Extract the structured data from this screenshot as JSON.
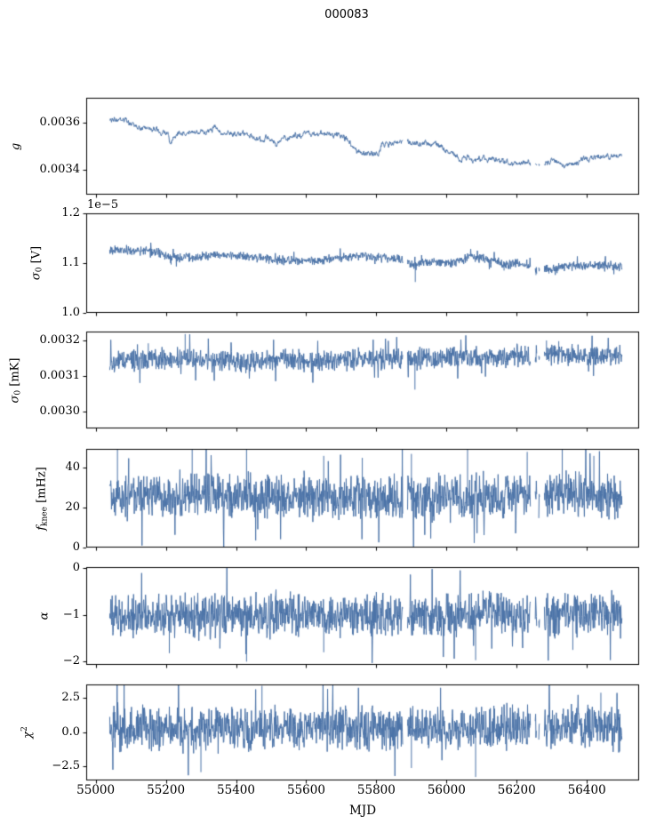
{
  "chart_data": {
    "type": "line",
    "title": "000083",
    "xlabel": "MJD",
    "line_color": "#4b73a8",
    "frame_color": "#000000",
    "text_color": "#000000",
    "xlim": [
      54973,
      56549
    ],
    "xticks": {
      "values": [
        55000,
        55200,
        55400,
        55600,
        55800,
        56000,
        56200,
        56400
      ],
      "labels": [
        "55000",
        "55200",
        "55400",
        "55600",
        "55800",
        "56000",
        "56200",
        "56400"
      ]
    },
    "x_data_range": [
      55040,
      56500
    ],
    "x_step_days": 1,
    "gaps": [
      [
        55876,
        55888
      ],
      [
        56240,
        56252
      ],
      [
        56258,
        56262
      ],
      [
        56266,
        56278
      ]
    ],
    "subplots": [
      {
        "ylabel_text": "g",
        "ylabel": [
          [
            "g",
            "i"
          ]
        ],
        "ylim": [
          0.003295,
          0.003705
        ],
        "yticks": {
          "values": [
            0.0034,
            0.0036
          ],
          "labels": [
            "0.0034",
            "0.0036"
          ]
        },
        "offset_text": null,
        "noise": {
          "up": 1e-05,
          "down": 1e-05,
          "smooth": true,
          "spike_prob": 0,
          "seed": 3
        },
        "trend": [
          [
            55040,
            0.003612
          ],
          [
            55070,
            0.003608
          ],
          [
            55100,
            0.003597
          ],
          [
            55130,
            0.003578
          ],
          [
            55160,
            0.00357
          ],
          [
            55190,
            0.003558
          ],
          [
            55206,
            0.003556
          ],
          [
            55212,
            0.003505
          ],
          [
            55222,
            0.003548
          ],
          [
            55250,
            0.003556
          ],
          [
            55285,
            0.00356
          ],
          [
            55315,
            0.003556
          ],
          [
            55340,
            0.00358
          ],
          [
            55355,
            0.003558
          ],
          [
            55385,
            0.003552
          ],
          [
            55415,
            0.003549
          ],
          [
            55445,
            0.003548
          ],
          [
            55475,
            0.003522
          ],
          [
            55495,
            0.003541
          ],
          [
            55515,
            0.003498
          ],
          [
            55530,
            0.003528
          ],
          [
            55555,
            0.003544
          ],
          [
            55590,
            0.00355
          ],
          [
            55630,
            0.003552
          ],
          [
            55665,
            0.003549
          ],
          [
            55695,
            0.003546
          ],
          [
            55720,
            0.003524
          ],
          [
            55745,
            0.003473
          ],
          [
            55775,
            0.003472
          ],
          [
            55805,
            0.003468
          ],
          [
            55818,
            0.003508
          ],
          [
            55850,
            0.003511
          ],
          [
            55890,
            0.003512
          ],
          [
            55930,
            0.003512
          ],
          [
            55960,
            0.003508
          ],
          [
            55985,
            0.003498
          ],
          [
            56010,
            0.003473
          ],
          [
            56035,
            0.003444
          ],
          [
            56065,
            0.003449
          ],
          [
            56095,
            0.003443
          ],
          [
            56125,
            0.003446
          ],
          [
            56155,
            0.003441
          ],
          [
            56185,
            0.003426
          ],
          [
            56215,
            0.003431
          ],
          [
            56245,
            0.003428
          ],
          [
            56275,
            0.003428
          ],
          [
            56305,
            0.003438
          ],
          [
            56330,
            0.003427
          ],
          [
            56355,
            0.003419
          ],
          [
            56380,
            0.003439
          ],
          [
            56410,
            0.003447
          ],
          [
            56440,
            0.003452
          ],
          [
            56470,
            0.003458
          ],
          [
            56500,
            0.003461
          ]
        ],
        "spikes": []
      },
      {
        "ylabel_text": "σ0 [V]",
        "ylabel": [
          [
            "σ",
            "i"
          ],
          [
            "0",
            "sub"
          ],
          [
            " [V]",
            ""
          ]
        ],
        "ylim": [
          1.0,
          1.2
        ],
        "yticks": {
          "values": [
            1.0,
            1.1,
            1.2
          ],
          "labels": [
            "1.0",
            "1.1",
            "1.2"
          ]
        },
        "offset_text": "1e−5",
        "noise": {
          "up": 0.01,
          "down": 0.012,
          "smooth": false,
          "spike_prob": 0.012,
          "seed": 17
        },
        "trend": [
          [
            55040,
            1.128
          ],
          [
            55090,
            1.127
          ],
          [
            55140,
            1.124
          ],
          [
            55180,
            1.121
          ],
          [
            55210,
            1.11
          ],
          [
            55240,
            1.111
          ],
          [
            55290,
            1.113
          ],
          [
            55340,
            1.117
          ],
          [
            55390,
            1.116
          ],
          [
            55440,
            1.112
          ],
          [
            55490,
            1.11
          ],
          [
            55540,
            1.106
          ],
          [
            55590,
            1.103
          ],
          [
            55640,
            1.107
          ],
          [
            55690,
            1.111
          ],
          [
            55740,
            1.114
          ],
          [
            55790,
            1.113
          ],
          [
            55840,
            1.111
          ],
          [
            55880,
            1.108
          ],
          [
            55911,
            1.096
          ],
          [
            55930,
            1.103
          ],
          [
            55965,
            1.102
          ],
          [
            56000,
            1.1
          ],
          [
            56040,
            1.106
          ],
          [
            56070,
            1.112
          ],
          [
            56105,
            1.109
          ],
          [
            56140,
            1.104
          ],
          [
            56164,
            1.097
          ],
          [
            56195,
            1.101
          ],
          [
            56230,
            1.094
          ],
          [
            56258,
            1.088
          ],
          [
            56285,
            1.09
          ],
          [
            56320,
            1.092
          ],
          [
            56360,
            1.095
          ],
          [
            56400,
            1.097
          ],
          [
            56450,
            1.097
          ],
          [
            56500,
            1.094
          ]
        ],
        "spikes": [
          [
            55911,
            1.062
          ],
          [
            56164,
            1.085
          ],
          [
            56255,
            1.076
          ],
          [
            56292,
            1.079
          ],
          [
            55215,
            1.097
          ]
        ]
      },
      {
        "ylabel_text": "σ0 [mK]",
        "ylabel": [
          [
            "σ",
            "i"
          ],
          [
            "0",
            "sub"
          ],
          [
            " [mK]",
            ""
          ]
        ],
        "ylim": [
          0.002953,
          0.003225
        ],
        "yticks": {
          "values": [
            0.003,
            0.0031,
            0.0032
          ],
          "labels": [
            "0.0030",
            "0.0031",
            "0.0032"
          ]
        },
        "offset_text": null,
        "noise": {
          "up": 3.6e-05,
          "down": 3.6e-05,
          "smooth": false,
          "spike_prob": 0.015,
          "seed": 29
        },
        "trend": [
          [
            55040,
            0.00314
          ],
          [
            55150,
            0.003145
          ],
          [
            55255,
            0.00315
          ],
          [
            55350,
            0.003142
          ],
          [
            55450,
            0.00314
          ],
          [
            55550,
            0.003145
          ],
          [
            55650,
            0.003142
          ],
          [
            55750,
            0.003145
          ],
          [
            55850,
            0.003147
          ],
          [
            55950,
            0.00315
          ],
          [
            56050,
            0.003152
          ],
          [
            56150,
            0.003155
          ],
          [
            56250,
            0.003157
          ],
          [
            56350,
            0.003159
          ],
          [
            56450,
            0.003157
          ],
          [
            56500,
            0.003159
          ]
        ],
        "spikes": [
          [
            55150,
            0.003192
          ],
          [
            55255,
            0.003218
          ],
          [
            55910,
            0.003062
          ],
          [
            56285,
            0.0032
          ],
          [
            56320,
            0.003198
          ]
        ]
      },
      {
        "ylabel_text": "fknee [mHz]",
        "ylabel": [
          [
            "f",
            "i"
          ],
          [
            "knee",
            "sub"
          ],
          [
            " [mHz]",
            ""
          ]
        ],
        "ylim": [
          0,
          49.5
        ],
        "yticks": {
          "values": [
            0,
            20,
            40
          ],
          "labels": [
            "0",
            "20",
            "40"
          ]
        },
        "offset_text": null,
        "noise": {
          "up": 14,
          "down": 13,
          "smooth": false,
          "spike_prob": 0.02,
          "seed": 41
        },
        "trend": [
          [
            55040,
            26
          ],
          [
            55200,
            25.5
          ],
          [
            55400,
            26
          ],
          [
            55600,
            25.5
          ],
          [
            55800,
            25
          ],
          [
            56000,
            24.5
          ],
          [
            56200,
            25.5
          ],
          [
            56350,
            26.5
          ],
          [
            56500,
            25.5
          ]
        ],
        "spikes": [
          [
            55062,
            55
          ],
          [
            55275,
            52
          ],
          [
            55430,
            50
          ],
          [
            55650,
            46
          ],
          [
            55760,
            45
          ],
          [
            55900,
            47
          ],
          [
            56060,
            50
          ],
          [
            56230,
            48
          ],
          [
            56330,
            52
          ],
          [
            56420,
            46
          ]
        ]
      },
      {
        "ylabel_text": "α",
        "ylabel": [
          [
            "α",
            "i"
          ]
        ],
        "ylim": [
          -2.07,
          0.02
        ],
        "yticks": {
          "values": [
            -2,
            -1,
            0
          ],
          "labels": [
            "−2",
            "−1",
            "0"
          ]
        },
        "offset_text": null,
        "noise": {
          "up": 0.55,
          "down": 0.55,
          "smooth": false,
          "spike_prob": 0.015,
          "seed": 53
        },
        "trend": [
          [
            55040,
            -1.0
          ],
          [
            55300,
            -1.02
          ],
          [
            55600,
            -0.98
          ],
          [
            55900,
            -1.02
          ],
          [
            56100,
            -1.0
          ],
          [
            56300,
            -1.02
          ],
          [
            56500,
            -1.0
          ]
        ],
        "spikes": [
          [
            55210,
            -1.82
          ],
          [
            55430,
            -2.0
          ],
          [
            55650,
            -1.8
          ],
          [
            56083,
            -1.97
          ],
          [
            56360,
            -1.75
          ]
        ]
      },
      {
        "ylabel_text": "χ2",
        "ylabel": [
          [
            "χ",
            "i"
          ],
          [
            "2",
            "sup"
          ]
        ],
        "ylim": [
          -3.5,
          3.45
        ],
        "yticks": {
          "values": [
            -2.5,
            0.0,
            2.5
          ],
          "labels": [
            "−2.5",
            "0.0",
            "2.5"
          ]
        },
        "offset_text": null,
        "noise": {
          "up": 1.95,
          "down": 1.85,
          "smooth": false,
          "spike_prob": 0.015,
          "seed": 67
        },
        "trend": [
          [
            55040,
            0.3
          ],
          [
            55300,
            0.25
          ],
          [
            55600,
            0.3
          ],
          [
            55900,
            0.2
          ],
          [
            56100,
            0.25
          ],
          [
            56300,
            0.3
          ],
          [
            56500,
            0.28
          ]
        ],
        "spikes": [
          [
            55300,
            -2.9
          ],
          [
            55474,
            3.35
          ],
          [
            55900,
            -2.6
          ],
          [
            56083,
            -3.25
          ],
          [
            56440,
            2.85
          ]
        ]
      }
    ]
  }
}
